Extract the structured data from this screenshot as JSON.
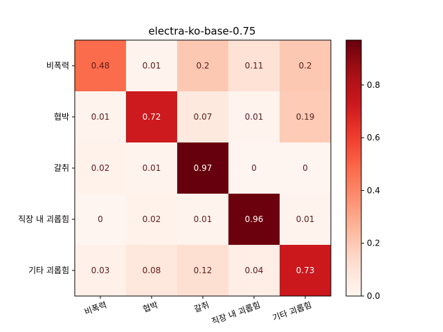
{
  "chart_data": {
    "type": "heatmap",
    "title": "electra-ko-base-0.75",
    "row_labels": [
      "비폭력",
      "협박",
      "갈취",
      "직장 내 괴롭힘",
      "기타 괴롭힘"
    ],
    "col_labels": [
      "비폭력",
      "협박",
      "갈취",
      "직장 내 괴롭힘",
      "기타 괴롭힘"
    ],
    "values": [
      [
        0.48,
        0.01,
        0.2,
        0.11,
        0.2
      ],
      [
        0.01,
        0.72,
        0.07,
        0.01,
        0.19
      ],
      [
        0.02,
        0.01,
        0.97,
        0,
        0
      ],
      [
        0,
        0.02,
        0.01,
        0.96,
        0.01
      ],
      [
        0.03,
        0.08,
        0.12,
        0.04,
        0.73
      ]
    ],
    "colormap": "Reds",
    "vmin": 0,
    "vmax": 0.97,
    "colorbar_ticks": [
      "0.0",
      "0.2",
      "0.4",
      "0.6",
      "0.8"
    ],
    "x_tick_rotation_deg": 20
  }
}
